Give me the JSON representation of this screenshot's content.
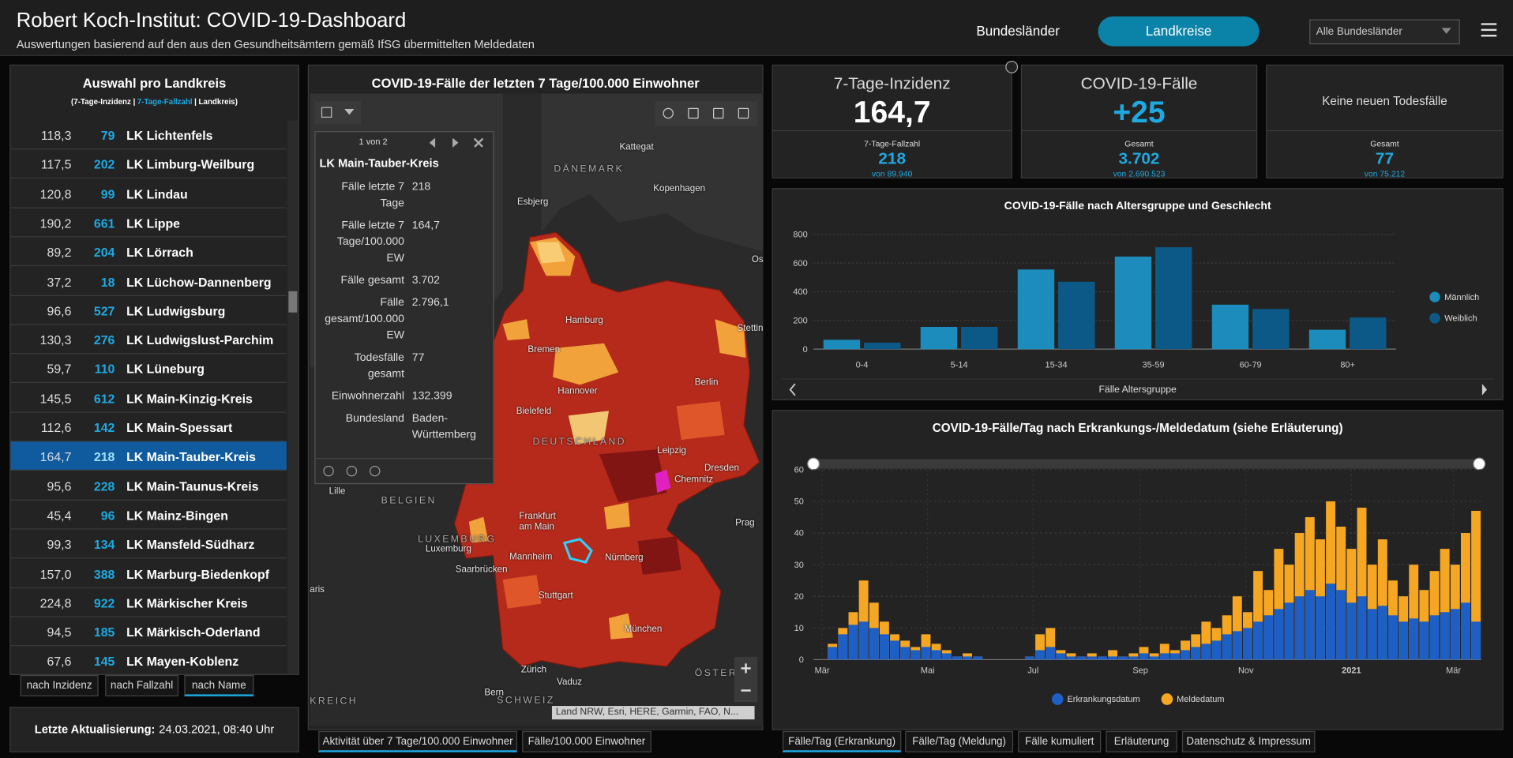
{
  "header": {
    "title": "Robert Koch-Institut: COVID-19-Dashboard",
    "subtitle": "Auswertungen basierend auf den aus den Gesundheitsämtern gemäß IfSG übermittelten Meldedaten",
    "nav": [
      "Bundesländer",
      "Landkreise"
    ],
    "filter": "Alle Bundesländer"
  },
  "district_list": {
    "title": "Auswahl pro Landkreis",
    "subtitle": [
      "(7-Tage-Inzidenz |",
      "7-Tage-Fallzahl",
      "| Landkreis)"
    ],
    "selected": 11,
    "rows": [
      [
        "118,3",
        "79",
        "LK Lichtenfels"
      ],
      [
        "117,5",
        "202",
        "LK Limburg-Weilburg"
      ],
      [
        "120,8",
        "99",
        "LK Lindau"
      ],
      [
        "190,2",
        "661",
        "LK Lippe"
      ],
      [
        "89,2",
        "204",
        "LK Lörrach"
      ],
      [
        "37,2",
        "18",
        "LK Lüchow-Dannenberg"
      ],
      [
        "96,6",
        "527",
        "LK Ludwigsburg"
      ],
      [
        "130,3",
        "276",
        "LK Ludwigslust-Parchim"
      ],
      [
        "59,7",
        "110",
        "LK Lüneburg"
      ],
      [
        "145,5",
        "612",
        "LK Main-Kinzig-Kreis"
      ],
      [
        "112,6",
        "142",
        "LK Main-Spessart"
      ],
      [
        "164,7",
        "218",
        "LK Main-Tauber-Kreis"
      ],
      [
        "95,6",
        "228",
        "LK Main-Taunus-Kreis"
      ],
      [
        "45,4",
        "96",
        "LK Mainz-Bingen"
      ],
      [
        "99,3",
        "134",
        "LK Mansfeld-Südharz"
      ],
      [
        "157,0",
        "388",
        "LK Marburg-Biedenkopf"
      ],
      [
        "224,8",
        "922",
        "LK Märkischer Kreis"
      ],
      [
        "94,5",
        "185",
        "LK Märkisch-Oderland"
      ],
      [
        "67,6",
        "145",
        "LK Mayen-Koblenz"
      ]
    ],
    "sort_buttons": [
      "nach Inzidenz",
      "nach Fallzahl",
      "nach Name"
    ],
    "sort_selected": 2
  },
  "update": {
    "label": "Letzte Aktualisierung:",
    "value": "24.03.2021, 08:40 Uhr"
  },
  "map": {
    "title": "COVID-19-Fälle der letzten 7 Tage/100.000 Einwohner",
    "labels": [
      "Kattegat",
      "DÄNEMARK",
      "Esbjerg",
      "Kopenhagen",
      "Hamburg",
      "Bremen",
      "Hannover",
      "Berlin",
      "Stettin",
      "Bielefeld",
      "DEUTSCHLAND",
      "Leipzig",
      "Dresden",
      "Chemnitz",
      "Lille",
      "BELGIEN",
      "Frankfurt am Main",
      "LUXEMBURG",
      "Luxemburg",
      "Mannheim",
      "Nürnberg",
      "Saarbrücken",
      "Prag",
      "Stuttgart",
      "München",
      "Zürich",
      "Vaduz",
      "Bern",
      "SCHWEIZ",
      "ÖSTER",
      "KREICH",
      "aris",
      "Os"
    ],
    "popup": {
      "pager": "1 von 2",
      "title": "LK Main-Tauber-Kreis",
      "fields": [
        [
          "Fälle letzte 7 Tage",
          "218"
        ],
        [
          "Fälle letzte 7 Tage/100.000 EW",
          "164,7"
        ],
        [
          "Fälle gesamt",
          "3.702"
        ],
        [
          "Fälle gesamt/100.000 EW",
          "2.796,1"
        ],
        [
          "Todesfälle gesamt",
          "77"
        ],
        [
          "Einwohnerzahl",
          "132.399"
        ],
        [
          "Bundesland",
          "Baden-Württemberg"
        ]
      ]
    },
    "attribution": "Land NRW, Esri, HERE, Garmin, FAO, N...",
    "tabs": [
      "Aktivität über 7 Tage/100.000 Einwohner",
      "Fälle/100.000 Einwohner"
    ],
    "tab_selected": 0
  },
  "kpis": [
    {
      "title": "7-Tage-Inzidenz",
      "value": "164,7",
      "sub_label": "7-Tage-Fallzahl",
      "sub_value": "218",
      "sub_total": "von 89.940"
    },
    {
      "title": "COVID-19-Fälle",
      "value": "+25",
      "sub_label": "Gesamt",
      "sub_value": "3.702",
      "sub_total": "von 2.690.523"
    },
    {
      "title": "Keine neuen Todesfälle",
      "sub_label": "Gesamt",
      "sub_value": "77",
      "sub_total": "von 75.212"
    }
  ],
  "chart_data": [
    {
      "type": "bar",
      "title": "COVID-19-Fälle nach Altersgruppe und Geschlecht",
      "categories": [
        "0-4",
        "5-14",
        "15-34",
        "35-59",
        "60-79",
        "80+"
      ],
      "series": [
        {
          "name": "Männlich",
          "color": "#1b8cbc",
          "values": [
            65,
            155,
            555,
            645,
            310,
            135
          ]
        },
        {
          "name": "Weiblich",
          "color": "#0c5987",
          "values": [
            45,
            155,
            470,
            710,
            280,
            220
          ]
        }
      ],
      "ylim": [
        0,
        800
      ],
      "yticks": [
        0,
        200,
        400,
        600,
        800
      ],
      "xlabel": "Fälle Altersgruppe",
      "legend": "right",
      "grid": true
    },
    {
      "type": "bar",
      "title": "COVID-19-Fälle/Tag nach Erkrankungs-/Meldedatum (siehe Erläuterung)",
      "x": [
        0,
        6,
        12,
        18,
        24,
        30,
        36,
        42,
        48,
        54,
        60,
        66,
        72,
        78,
        84,
        90,
        96,
        102,
        108,
        114,
        120,
        126,
        132,
        138,
        144,
        150,
        156,
        162,
        168,
        174,
        180,
        186,
        192,
        198,
        204,
        210,
        216,
        222,
        228,
        234,
        240,
        246,
        252,
        258,
        264,
        270,
        276,
        282,
        288,
        294,
        300,
        306,
        312,
        318,
        324,
        330,
        336,
        342,
        348,
        354,
        360,
        366,
        372,
        378
      ],
      "series": [
        {
          "name": "Meldedatum",
          "color": "#f5a623",
          "values": [
            0,
            5,
            10,
            15,
            25,
            18,
            12,
            8,
            6,
            4,
            8,
            5,
            3,
            1,
            2,
            1,
            0,
            0,
            0,
            0,
            1,
            8,
            10,
            3,
            2,
            1,
            2,
            1,
            3,
            1,
            2,
            4,
            2,
            5,
            3,
            6,
            8,
            12,
            10,
            14,
            20,
            15,
            28,
            22,
            35,
            30,
            40,
            45,
            38,
            50,
            42,
            35,
            48,
            30,
            38,
            25,
            20,
            30,
            22,
            28,
            35,
            30,
            40,
            47
          ]
        },
        {
          "name": "Erkrankungsdatum",
          "color": "#1d5fc4",
          "values": [
            0,
            4,
            8,
            11,
            12,
            10,
            8,
            6,
            4,
            3,
            4,
            3,
            2,
            1,
            1,
            1,
            0,
            0,
            0,
            0,
            1,
            3,
            4,
            2,
            1,
            1,
            1,
            1,
            1,
            1,
            1,
            2,
            1,
            2,
            2,
            3,
            4,
            5,
            6,
            8,
            9,
            10,
            12,
            14,
            16,
            18,
            20,
            22,
            20,
            24,
            22,
            18,
            20,
            16,
            17,
            14,
            12,
            13,
            12,
            14,
            15,
            16,
            18,
            12
          ]
        }
      ],
      "legend_order": [
        1,
        0
      ],
      "xlim": [
        -5,
        381
      ],
      "xticks": [
        {
          "value": 0,
          "label": "Mär"
        },
        {
          "value": 61,
          "label": "Mai"
        },
        {
          "value": 122,
          "label": "Jul"
        },
        {
          "value": 184,
          "label": "Sep"
        },
        {
          "value": 245,
          "label": "Nov"
        },
        {
          "value": 306,
          "label": "2021"
        },
        {
          "value": 365,
          "label": "Mär"
        }
      ],
      "ylim": [
        0,
        60
      ],
      "yticks": [
        0,
        10,
        20,
        30,
        40,
        50,
        60
      ],
      "grid": true,
      "legend": "bottom"
    }
  ],
  "chart_tabs": [
    "Fälle/Tag (Erkrankung)",
    "Fälle/Tag (Meldung)",
    "Fälle kumuliert",
    "Erläuterung",
    "Datenschutz & Impressum"
  ],
  "chart_tab_selected": 0
}
